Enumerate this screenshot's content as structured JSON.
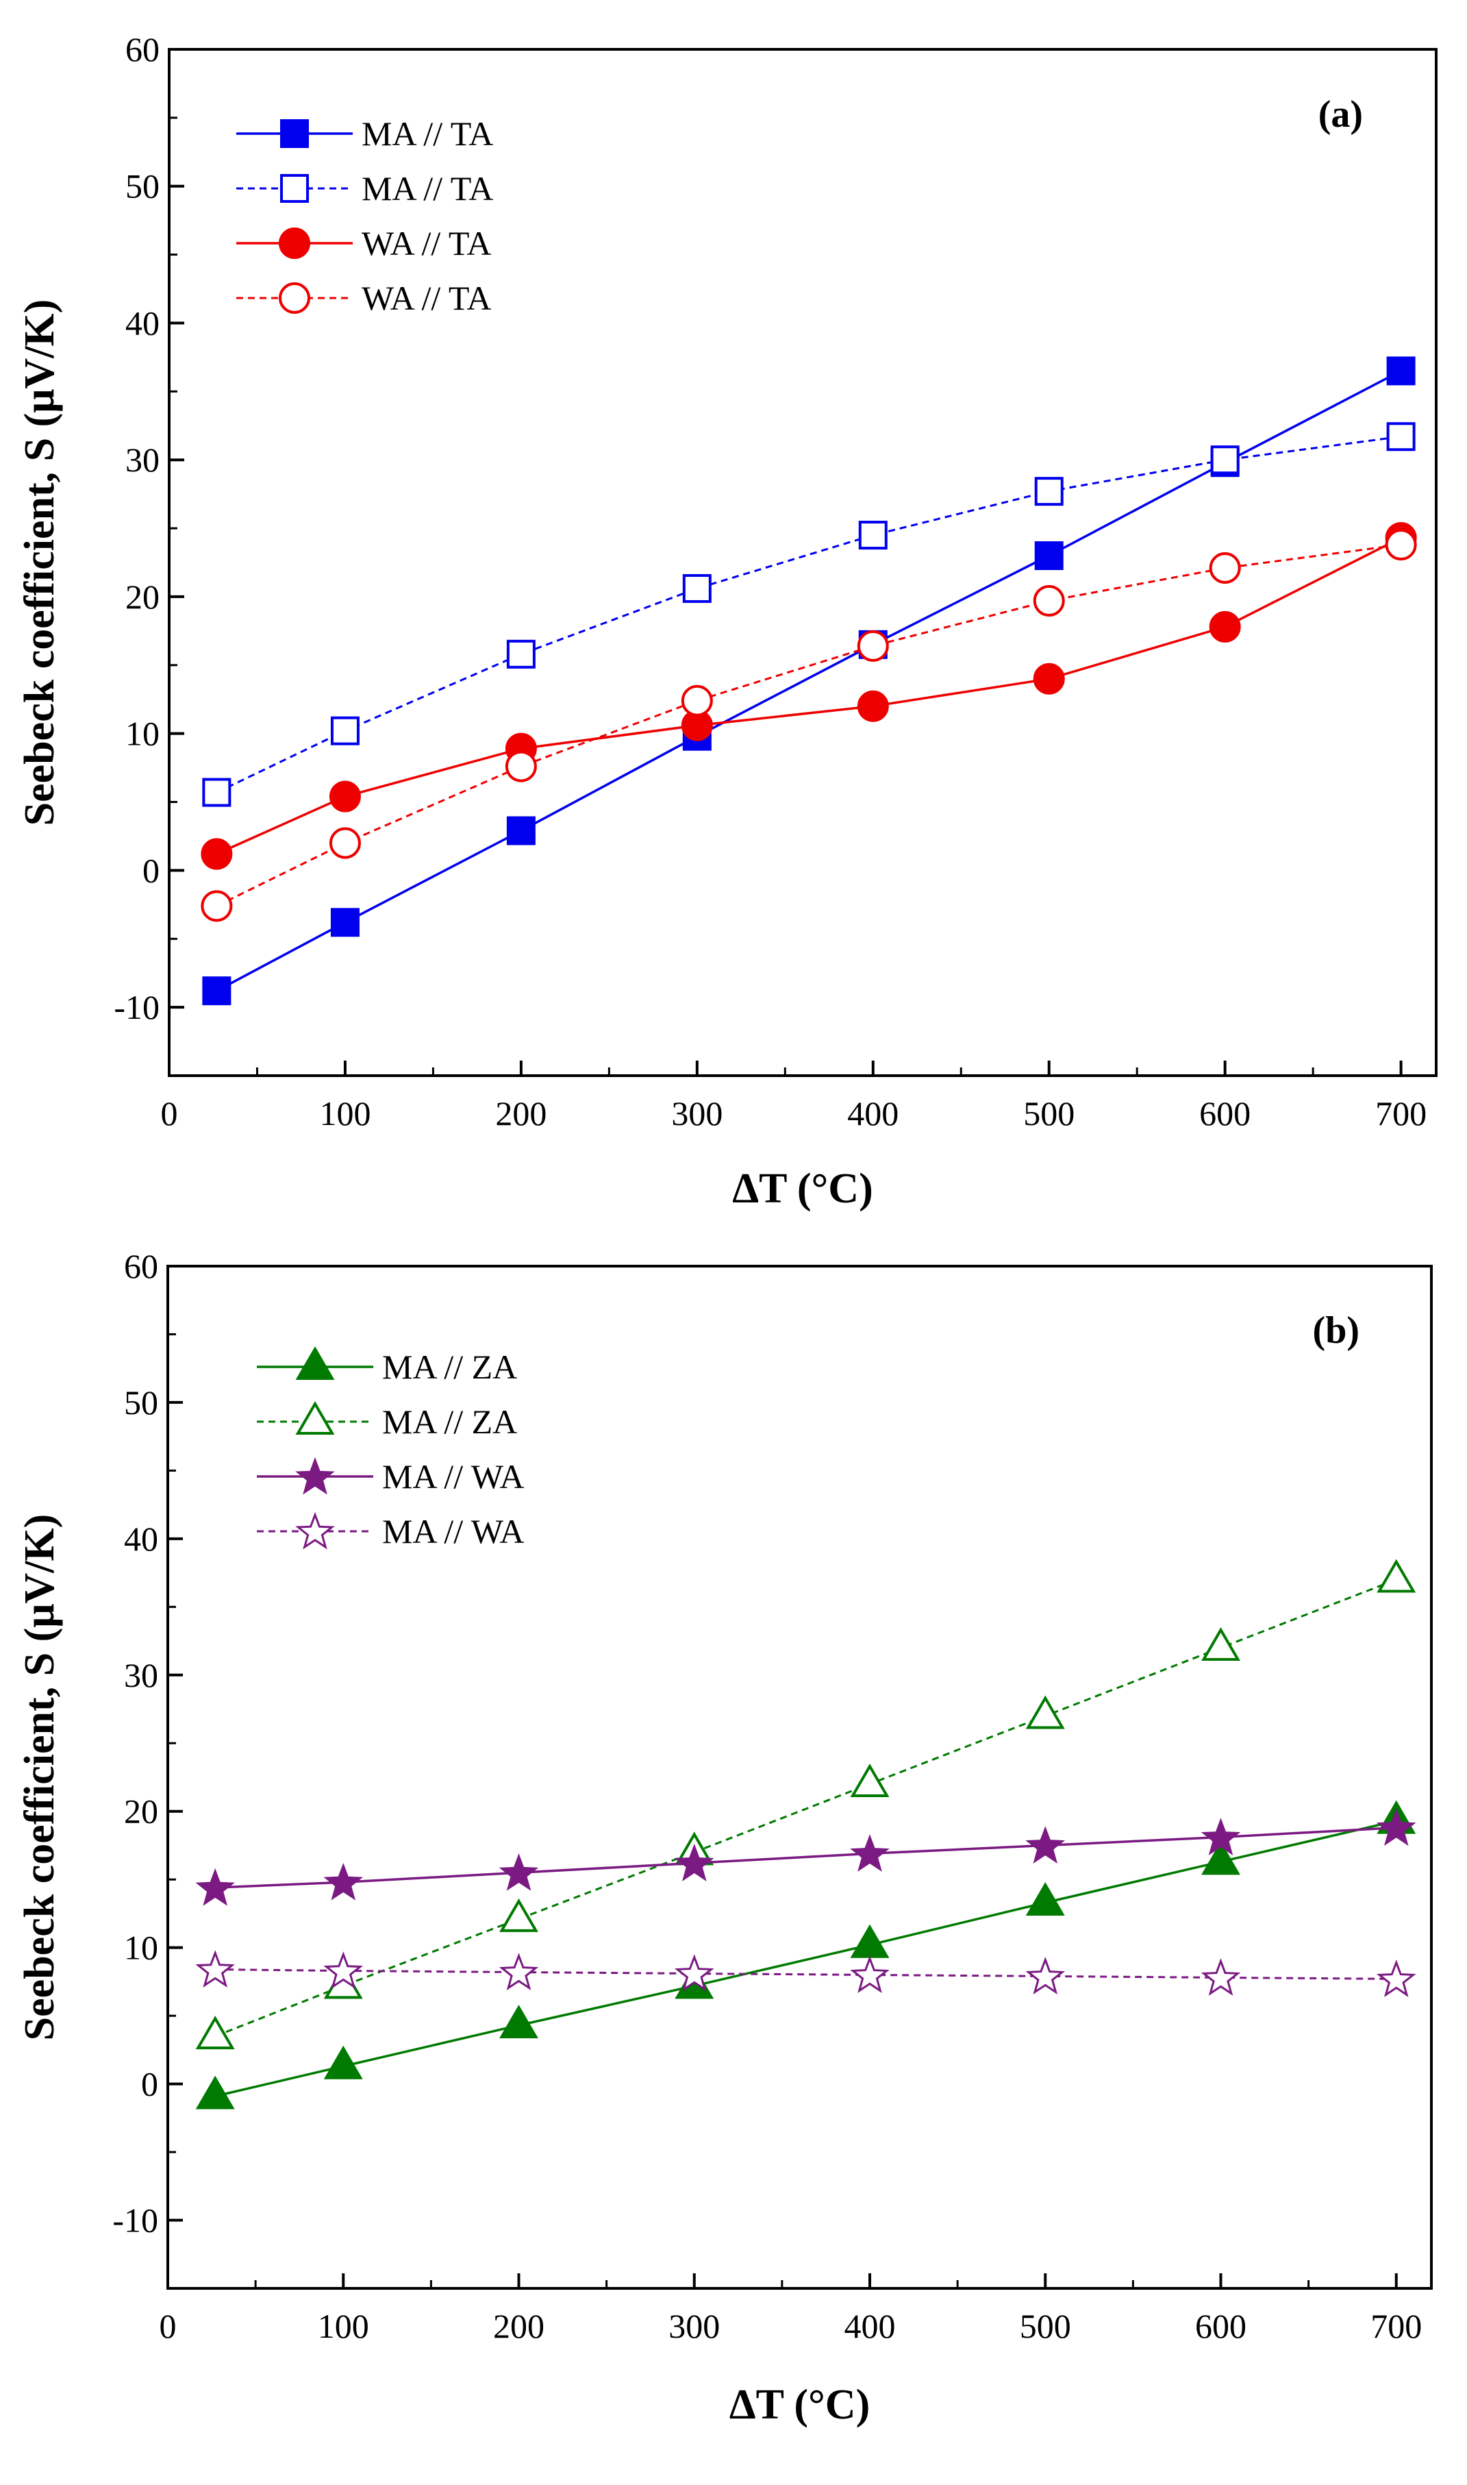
{
  "colors": {
    "blue": "#0000ee",
    "red": "#ee0000",
    "green": "#007a00",
    "purple": "#7a1a82"
  },
  "chart_data": [
    {
      "type": "line",
      "panel_label": "(a)",
      "xlabel": "ΔT (°C)",
      "ylabel": "Seebeck coefficient, S (μV/K)",
      "xlim": [
        0,
        720
      ],
      "ylim": [
        -15,
        60
      ],
      "xticks": [
        0,
        100,
        200,
        300,
        400,
        500,
        600,
        700
      ],
      "yticks": [
        -10,
        0,
        10,
        20,
        30,
        40,
        50,
        60
      ],
      "legend_position": "top-left",
      "grid": false,
      "series": [
        {
          "name": "MA // TA",
          "color": "#0000ee",
          "marker": "square",
          "filled": true,
          "line": "solid",
          "x": [
            27,
            100,
            200,
            300,
            400,
            500,
            600,
            700
          ],
          "y": [
            -8.8,
            -3.8,
            2.9,
            9.8,
            16.5,
            23.0,
            29.8,
            36.5
          ]
        },
        {
          "name": "MA // TA",
          "color": "#0000ee",
          "marker": "square",
          "filled": false,
          "line": "dashed",
          "x": [
            27,
            100,
            200,
            300,
            400,
            500,
            600,
            700
          ],
          "y": [
            5.7,
            10.2,
            15.8,
            20.6,
            24.5,
            27.7,
            30.0,
            31.7
          ]
        },
        {
          "name": "WA // TA",
          "color": "#ee0000",
          "marker": "circle",
          "filled": true,
          "line": "solid",
          "x": [
            27,
            100,
            200,
            300,
            400,
            500,
            600,
            700
          ],
          "y": [
            1.2,
            5.4,
            8.9,
            10.6,
            12.0,
            14.0,
            17.8,
            24.3
          ]
        },
        {
          "name": "WA // TA",
          "color": "#ee0000",
          "marker": "circle",
          "filled": false,
          "line": "dashed",
          "x": [
            27,
            100,
            200,
            300,
            400,
            500,
            600,
            700
          ],
          "y": [
            -2.6,
            2.0,
            7.6,
            12.4,
            16.4,
            19.7,
            22.1,
            23.8
          ]
        }
      ]
    },
    {
      "type": "line",
      "panel_label": "(b)",
      "xlabel": "ΔT (°C)",
      "ylabel": "Seebeck coefficient, S (μV/K)",
      "xlim": [
        0,
        720
      ],
      "ylim": [
        -15,
        60
      ],
      "xticks": [
        0,
        100,
        200,
        300,
        400,
        500,
        600,
        700
      ],
      "yticks": [
        -10,
        0,
        10,
        20,
        30,
        40,
        50,
        60
      ],
      "legend_position": "top-left",
      "grid": false,
      "series": [
        {
          "name": "MA // ZA",
          "color": "#007a00",
          "marker": "triangle",
          "filled": true,
          "line": "solid",
          "x": [
            27,
            100,
            200,
            300,
            400,
            500,
            600,
            700
          ],
          "y": [
            -0.9,
            1.3,
            4.3,
            7.2,
            10.2,
            13.3,
            16.3,
            19.3
          ]
        },
        {
          "name": "MA // ZA",
          "color": "#007a00",
          "marker": "triangle",
          "filled": false,
          "line": "dashed",
          "x": [
            27,
            100,
            200,
            300,
            400,
            500,
            600,
            700
          ],
          "y": [
            3.5,
            7.2,
            12.1,
            17.0,
            22.0,
            27.0,
            32.0,
            37.0
          ]
        },
        {
          "name": "MA // WA",
          "color": "#7a1a82",
          "marker": "star",
          "filled": true,
          "line": "solid",
          "x": [
            27,
            100,
            200,
            300,
            400,
            500,
            600,
            700
          ],
          "y": [
            14.4,
            14.8,
            15.5,
            16.2,
            16.9,
            17.5,
            18.1,
            18.8
          ]
        },
        {
          "name": "MA // WA",
          "color": "#7a1a82",
          "marker": "star",
          "filled": false,
          "line": "dashed",
          "x": [
            27,
            100,
            200,
            300,
            400,
            500,
            600,
            700
          ],
          "y": [
            8.4,
            8.3,
            8.2,
            8.1,
            8.0,
            7.9,
            7.8,
            7.7
          ]
        }
      ]
    }
  ]
}
